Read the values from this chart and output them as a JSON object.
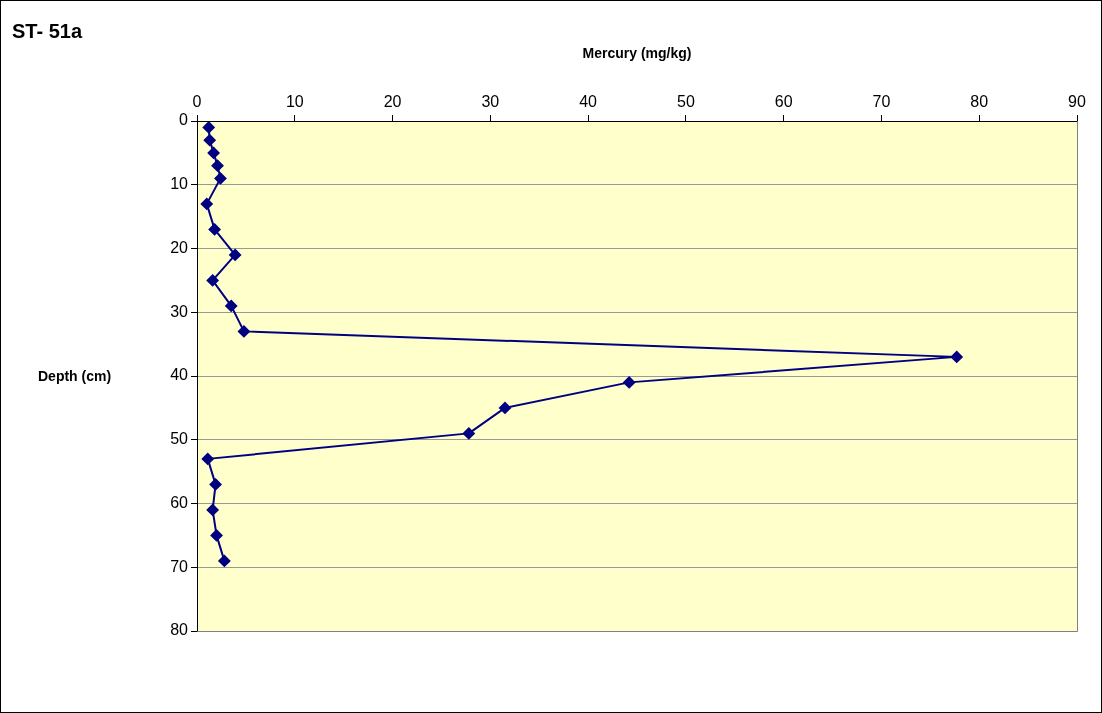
{
  "chart_data": {
    "type": "line",
    "title": "ST- 51a",
    "xlabel": "Mercury (mg/kg)",
    "ylabel": "Depth (cm)",
    "series": [
      {
        "color": "#000080",
        "x": [
          1.2,
          1.3,
          1.7,
          2.1,
          2.4,
          1.0,
          1.8,
          3.9,
          1.6,
          3.5,
          4.8,
          77.7,
          44.2,
          31.5,
          27.8,
          1.1,
          1.9,
          1.6,
          2.0,
          2.8
        ],
        "values": [
          1,
          3,
          5,
          7,
          9,
          13,
          17,
          21,
          25,
          29,
          33,
          37,
          41,
          45,
          49,
          53,
          57,
          61,
          65,
          69
        ]
      }
    ],
    "xlim": [
      0,
      90
    ],
    "xticks": [
      0,
      10,
      20,
      30,
      40,
      50,
      60,
      70,
      80,
      90
    ],
    "ylim": [
      80,
      0
    ],
    "yticks": [
      0,
      10,
      20,
      30,
      40,
      50,
      60,
      70,
      80
    ],
    "grid": "y",
    "legend": false,
    "marker": "diamond",
    "line_style": "solid"
  }
}
